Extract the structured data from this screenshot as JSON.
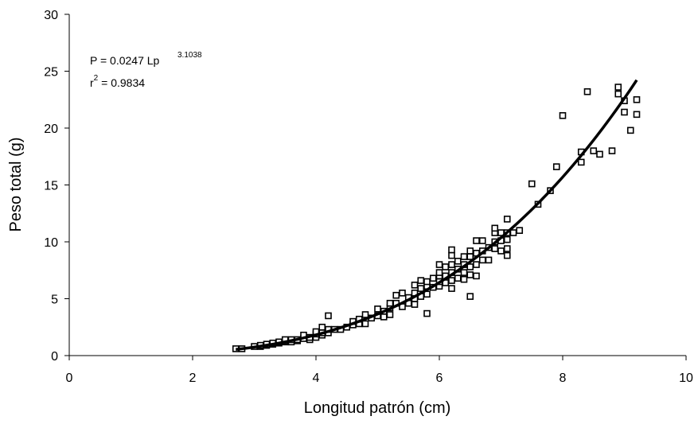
{
  "chart_data": {
    "type": "scatter",
    "xlabel": "Longitud patrón (cm)",
    "ylabel": "Peso total (g)",
    "xlim": [
      0,
      10
    ],
    "ylim": [
      0,
      30
    ],
    "xticks": [
      "0",
      "2",
      "4",
      "6",
      "8",
      "10"
    ],
    "yticks": [
      "0",
      "5",
      "10",
      "15",
      "20",
      "25",
      "30"
    ],
    "grid": false,
    "legend": "none",
    "annotation": {
      "equation_prefix": "P = 0.0247 Lp",
      "equation_exponent": "3.1038",
      "r2_prefix": "r",
      "r2_sup": "2",
      "r2_value": " = 0.9834"
    },
    "fit": {
      "a": 0.0247,
      "b": 3.1038,
      "x_from": 2.7,
      "x_to": 9.2
    },
    "series": [
      {
        "marker": "square",
        "points": [
          [
            2.7,
            0.6
          ],
          [
            2.8,
            0.6
          ],
          [
            3.0,
            0.8
          ],
          [
            3.1,
            0.8
          ],
          [
            3.1,
            0.9
          ],
          [
            3.2,
            0.9
          ],
          [
            3.2,
            1.0
          ],
          [
            3.3,
            1.0
          ],
          [
            3.3,
            1.1
          ],
          [
            3.4,
            1.1
          ],
          [
            3.4,
            1.2
          ],
          [
            3.5,
            1.2
          ],
          [
            3.5,
            1.3
          ],
          [
            3.5,
            1.4
          ],
          [
            3.6,
            1.2
          ],
          [
            3.6,
            1.4
          ],
          [
            3.7,
            1.3
          ],
          [
            3.7,
            1.4
          ],
          [
            3.8,
            1.5
          ],
          [
            3.8,
            1.8
          ],
          [
            3.9,
            1.4
          ],
          [
            3.9,
            1.6
          ],
          [
            4.0,
            1.6
          ],
          [
            4.0,
            1.9
          ],
          [
            4.0,
            2.1
          ],
          [
            4.1,
            1.8
          ],
          [
            4.1,
            2.0
          ],
          [
            4.1,
            2.5
          ],
          [
            4.2,
            2.0
          ],
          [
            4.2,
            2.3
          ],
          [
            4.2,
            3.5
          ],
          [
            4.3,
            2.3
          ],
          [
            4.4,
            2.3
          ],
          [
            4.5,
            2.5
          ],
          [
            4.6,
            2.7
          ],
          [
            4.6,
            3.0
          ],
          [
            4.7,
            2.8
          ],
          [
            4.7,
            3.2
          ],
          [
            4.8,
            2.8
          ],
          [
            4.8,
            3.6
          ],
          [
            4.9,
            3.3
          ],
          [
            5.0,
            3.5
          ],
          [
            5.0,
            4.1
          ],
          [
            5.1,
            3.4
          ],
          [
            5.1,
            3.9
          ],
          [
            5.2,
            3.6
          ],
          [
            5.2,
            4.2
          ],
          [
            5.2,
            4.6
          ],
          [
            5.3,
            4.6
          ],
          [
            5.3,
            5.3
          ],
          [
            5.4,
            4.3
          ],
          [
            5.4,
            5.5
          ],
          [
            5.5,
            4.6
          ],
          [
            5.5,
            5.1
          ],
          [
            5.6,
            4.5
          ],
          [
            5.6,
            5.0
          ],
          [
            5.6,
            5.5
          ],
          [
            5.6,
            6.2
          ],
          [
            5.7,
            5.2
          ],
          [
            5.7,
            5.9
          ],
          [
            5.7,
            6.6
          ],
          [
            5.8,
            3.7
          ],
          [
            5.8,
            5.4
          ],
          [
            5.8,
            6.1
          ],
          [
            5.8,
            6.5
          ],
          [
            5.9,
            6.0
          ],
          [
            5.9,
            6.8
          ],
          [
            6.0,
            6.1
          ],
          [
            6.0,
            6.5
          ],
          [
            6.0,
            7.0
          ],
          [
            6.0,
            7.3
          ],
          [
            6.0,
            8.0
          ],
          [
            6.1,
            6.4
          ],
          [
            6.1,
            7.0
          ],
          [
            6.1,
            7.8
          ],
          [
            6.2,
            5.9
          ],
          [
            6.2,
            6.6
          ],
          [
            6.2,
            7.3
          ],
          [
            6.2,
            8.0
          ],
          [
            6.2,
            8.8
          ],
          [
            6.2,
            9.3
          ],
          [
            6.3,
            6.8
          ],
          [
            6.3,
            7.6
          ],
          [
            6.3,
            8.3
          ],
          [
            6.4,
            6.7
          ],
          [
            6.4,
            7.3
          ],
          [
            6.4,
            8.0
          ],
          [
            6.4,
            8.7
          ],
          [
            6.5,
            5.2
          ],
          [
            6.5,
            7.1
          ],
          [
            6.5,
            7.8
          ],
          [
            6.5,
            8.7
          ],
          [
            6.5,
            9.2
          ],
          [
            6.6,
            7.0
          ],
          [
            6.6,
            8.0
          ],
          [
            6.6,
            9.0
          ],
          [
            6.6,
            10.1
          ],
          [
            6.7,
            8.4
          ],
          [
            6.7,
            9.2
          ],
          [
            6.7,
            10.1
          ],
          [
            6.8,
            8.4
          ],
          [
            6.8,
            9.5
          ],
          [
            6.9,
            9.4
          ],
          [
            6.9,
            10.0
          ],
          [
            6.9,
            10.8
          ],
          [
            6.9,
            11.2
          ],
          [
            7.0,
            9.2
          ],
          [
            7.0,
            10.1
          ],
          [
            7.0,
            10.8
          ],
          [
            7.1,
            8.8
          ],
          [
            7.1,
            9.4
          ],
          [
            7.1,
            10.2
          ],
          [
            7.1,
            10.8
          ],
          [
            7.1,
            12.0
          ],
          [
            7.2,
            10.8
          ],
          [
            7.3,
            11.0
          ],
          [
            7.5,
            15.1
          ],
          [
            7.6,
            13.3
          ],
          [
            7.8,
            14.5
          ],
          [
            7.9,
            16.6
          ],
          [
            8.0,
            21.1
          ],
          [
            8.3,
            17.0
          ],
          [
            8.3,
            17.9
          ],
          [
            8.4,
            23.2
          ],
          [
            8.5,
            18.0
          ],
          [
            8.6,
            17.7
          ],
          [
            8.8,
            18.0
          ],
          [
            8.9,
            23.0
          ],
          [
            8.9,
            23.6
          ],
          [
            9.0,
            21.4
          ],
          [
            9.0,
            22.4
          ],
          [
            9.1,
            19.8
          ],
          [
            9.2,
            21.2
          ],
          [
            9.2,
            22.5
          ]
        ]
      }
    ]
  }
}
